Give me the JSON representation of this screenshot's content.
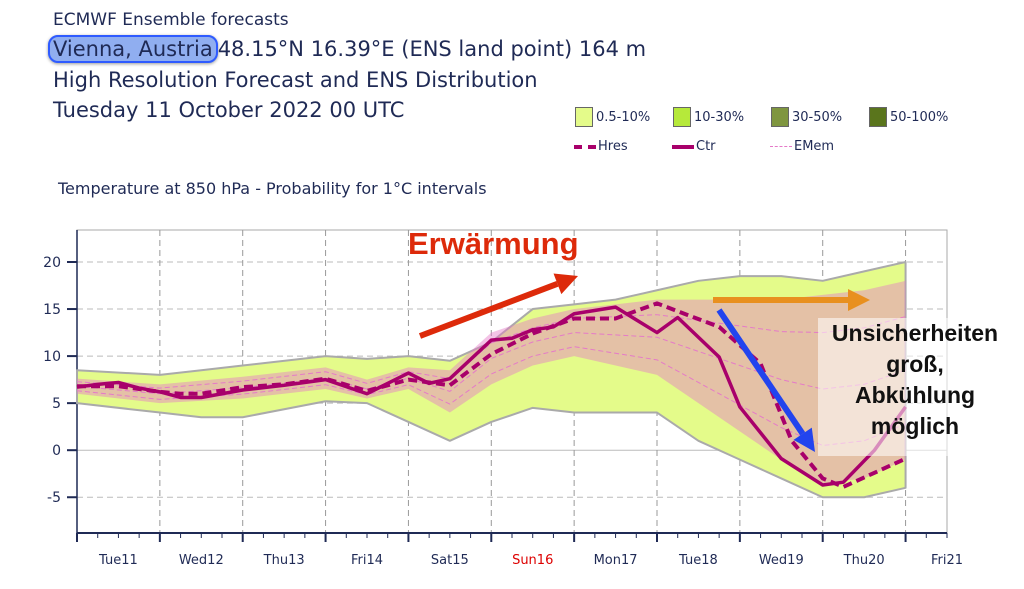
{
  "header": {
    "line1": "ECMWF Ensemble forecasts",
    "place": "Vienna, Austria",
    "location": "48.15°N 16.39°E (ENS land point) 164 m",
    "line3": "High Resolution Forecast and ENS Distribution",
    "line4": "Tuesday 11 October 2022 00 UTC"
  },
  "legend": {
    "probability": [
      {
        "label": "0.5-10%",
        "color": "#e4fb8a"
      },
      {
        "label": "10-30%",
        "color": "#b6e93a"
      },
      {
        "label": "30-50%",
        "color": "#7f963f"
      },
      {
        "label": "50-100%",
        "color": "#5a751c"
      }
    ],
    "lines": [
      {
        "label": "Hres",
        "color": "#a8006b",
        "style": "dashed-thick"
      },
      {
        "label": "Ctr",
        "color": "#a8006b",
        "style": "solid-thick"
      },
      {
        "label": "EMem",
        "color": "#e57ac8",
        "style": "dashed-thin"
      }
    ]
  },
  "annotations": {
    "warming": "Erwärmung",
    "note": [
      "Unsicherheiten",
      "groß,",
      "Abkühlung",
      "möglich"
    ],
    "colors": {
      "warming_arrow": "#dd2a0a",
      "uncertainty_arrow": "#e8901f",
      "cooling_arrow": "#2244ee"
    }
  },
  "chart_data": {
    "type": "line",
    "title": "Temperature at 850 hPa - Probability for 1°C intervals",
    "xlabel": "",
    "ylabel": "",
    "ylim": [
      -8.8,
      23.4
    ],
    "xlim": [
      "2022-10-11T00",
      "2022-10-21T12"
    ],
    "yticks": [
      -5,
      0,
      5,
      10,
      15,
      20
    ],
    "xticks": [
      {
        "label": "Tue11",
        "color": "#1f2a55"
      },
      {
        "label": "Wed12",
        "color": "#1f2a55"
      },
      {
        "label": "Thu13",
        "color": "#1f2a55"
      },
      {
        "label": "Fri14",
        "color": "#1f2a55"
      },
      {
        "label": "Sat15",
        "color": "#1f2a55"
      },
      {
        "label": "Sun16",
        "color": "#dd0000"
      },
      {
        "label": "Mon17",
        "color": "#1f2a55"
      },
      {
        "label": "Tue18",
        "color": "#1f2a55"
      },
      {
        "label": "Wed19",
        "color": "#1f2a55"
      },
      {
        "label": "Thu20",
        "color": "#1f2a55"
      },
      {
        "label": "Fri21",
        "color": "#1f2a55"
      }
    ],
    "grid": true,
    "series": [
      {
        "name": "Ctr",
        "style": "solid",
        "points": [
          [
            "2022-10-11T00",
            6.7
          ],
          [
            "2022-10-11T06",
            7.0
          ],
          [
            "2022-10-11T12",
            7.2
          ],
          [
            "2022-10-11T18",
            6.6
          ],
          [
            "2022-10-12T00",
            6.2
          ],
          [
            "2022-10-12T06",
            5.6
          ],
          [
            "2022-10-12T12",
            5.6
          ],
          [
            "2022-10-13T00",
            6.4
          ],
          [
            "2022-10-13T12",
            6.9
          ],
          [
            "2022-10-14T00",
            7.5
          ],
          [
            "2022-10-14T12",
            6.0
          ],
          [
            "2022-10-15T00",
            8.2
          ],
          [
            "2022-10-15T06",
            7.1
          ],
          [
            "2022-10-15T12",
            7.6
          ],
          [
            "2022-10-16T00",
            11.7
          ],
          [
            "2022-10-16T06",
            11.9
          ],
          [
            "2022-10-16T12",
            12.8
          ],
          [
            "2022-10-16T18",
            13.1
          ],
          [
            "2022-10-17T00",
            14.5
          ],
          [
            "2022-10-17T12",
            15.2
          ],
          [
            "2022-10-18T00",
            12.5
          ],
          [
            "2022-10-18T06",
            14.1
          ],
          [
            "2022-10-18T18",
            9.9
          ],
          [
            "2022-10-19T00",
            4.6
          ],
          [
            "2022-10-19T12",
            -0.9
          ],
          [
            "2022-10-20T00",
            -3.7
          ],
          [
            "2022-10-20T06",
            -3.4
          ],
          [
            "2022-10-20T15",
            0.0
          ],
          [
            "2022-10-21T00",
            4.6
          ]
        ]
      },
      {
        "name": "Hres",
        "style": "dashed",
        "points": [
          [
            "2022-10-11T00",
            6.8
          ],
          [
            "2022-10-11T12",
            6.8
          ],
          [
            "2022-10-12T00",
            6.2
          ],
          [
            "2022-10-12T06",
            6.0
          ],
          [
            "2022-10-12T12",
            6.0
          ],
          [
            "2022-10-13T00",
            6.7
          ],
          [
            "2022-10-13T12",
            7.0
          ],
          [
            "2022-10-14T00",
            7.6
          ],
          [
            "2022-10-14T12",
            6.3
          ],
          [
            "2022-10-15T00",
            7.5
          ],
          [
            "2022-10-15T12",
            6.9
          ],
          [
            "2022-10-16T00",
            10.2
          ],
          [
            "2022-10-16T12",
            12.4
          ],
          [
            "2022-10-17T00",
            14.0
          ],
          [
            "2022-10-17T12",
            14.0
          ],
          [
            "2022-10-18T00",
            15.6
          ],
          [
            "2022-10-18T18",
            13.1
          ],
          [
            "2022-10-19T06",
            9.2
          ],
          [
            "2022-10-19T15",
            1.0
          ],
          [
            "2022-10-20T00",
            -3.0
          ],
          [
            "2022-10-20T06",
            -3.9
          ],
          [
            "2022-10-21T00",
            -0.9
          ]
        ]
      }
    ],
    "ens_envelope": {
      "name": "0.5-10%",
      "points": [
        [
          "2022-10-11T00",
          5.0,
          8.5
        ],
        [
          "2022-10-12T00",
          4.0,
          8.0
        ],
        [
          "2022-10-12T12",
          3.5,
          8.5
        ],
        [
          "2022-10-13T00",
          3.5,
          9.0
        ],
        [
          "2022-10-14T00",
          5.2,
          10.0
        ],
        [
          "2022-10-14T12",
          5.0,
          9.7
        ],
        [
          "2022-10-15T00",
          3.0,
          10.0
        ],
        [
          "2022-10-15T12",
          1.0,
          9.5
        ],
        [
          "2022-10-16T00",
          3.0,
          11.5
        ],
        [
          "2022-10-16T12",
          4.5,
          15.0
        ],
        [
          "2022-10-17T00",
          4.0,
          15.5
        ],
        [
          "2022-10-17T12",
          4.0,
          16.0
        ],
        [
          "2022-10-18T00",
          4.0,
          17.0
        ],
        [
          "2022-10-18T12",
          1.0,
          18.0
        ],
        [
          "2022-10-19T00",
          -1.0,
          18.5
        ],
        [
          "2022-10-19T12",
          -3.0,
          18.5
        ],
        [
          "2022-10-20T00",
          -5.0,
          18.0
        ],
        [
          "2022-10-20T12",
          -5.0,
          19.0
        ],
        [
          "2022-10-21T00",
          -4.0,
          20.0
        ]
      ]
    },
    "ens_core": {
      "name": "EMem",
      "points": [
        [
          "2022-10-11T00",
          6.0,
          7.6
        ],
        [
          "2022-10-12T00",
          5.0,
          7.0
        ],
        [
          "2022-10-13T00",
          5.5,
          7.8
        ],
        [
          "2022-10-14T00",
          6.5,
          8.8
        ],
        [
          "2022-10-14T12",
          5.5,
          7.5
        ],
        [
          "2022-10-15T00",
          6.5,
          8.8
        ],
        [
          "2022-10-15T12",
          4.0,
          8.5
        ],
        [
          "2022-10-16T00",
          7.0,
          12.5
        ],
        [
          "2022-10-16T12",
          9.0,
          14.0
        ],
        [
          "2022-10-17T00",
          10.0,
          15.0
        ],
        [
          "2022-10-17T12",
          9.0,
          15.5
        ],
        [
          "2022-10-18T00",
          8.0,
          16.0
        ],
        [
          "2022-10-18T12",
          5.0,
          16.0
        ],
        [
          "2022-10-19T00",
          2.0,
          16.0
        ],
        [
          "2022-10-19T12",
          -1.0,
          16.0
        ],
        [
          "2022-10-20T00",
          -3.5,
          16.5
        ],
        [
          "2022-10-20T12",
          -3.0,
          17.0
        ],
        [
          "2022-10-21T00",
          -1.0,
          18.0
        ]
      ]
    }
  }
}
